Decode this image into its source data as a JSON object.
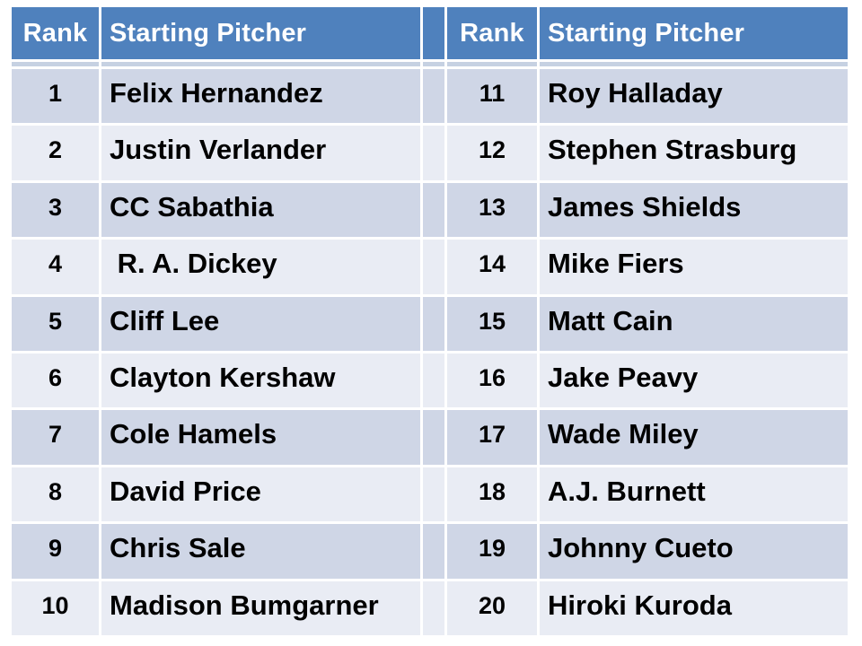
{
  "table": {
    "header": {
      "rank": "Rank",
      "pitcher": "Starting Pitcher"
    },
    "left_rows": [
      {
        "rank": "1",
        "name": "Felix Hernandez"
      },
      {
        "rank": "2",
        "name": "Justin Verlander"
      },
      {
        "rank": "3",
        "name": "CC Sabathia"
      },
      {
        "rank": "4",
        "name": " R. A. Dickey"
      },
      {
        "rank": "5",
        "name": "Cliff Lee"
      },
      {
        "rank": "6",
        "name": "Clayton Kershaw"
      },
      {
        "rank": "7",
        "name": "Cole Hamels"
      },
      {
        "rank": "8",
        "name": "David Price"
      },
      {
        "rank": "9",
        "name": "Chris Sale"
      },
      {
        "rank": "10",
        "name": "Madison Bumgarner"
      }
    ],
    "right_rows": [
      {
        "rank": "11",
        "name": "Roy Halladay"
      },
      {
        "rank": "12",
        "name": "Stephen Strasburg"
      },
      {
        "rank": "13",
        "name": "James Shields"
      },
      {
        "rank": "14",
        "name": "Mike Fiers"
      },
      {
        "rank": "15",
        "name": "Matt Cain"
      },
      {
        "rank": "16",
        "name": "Jake Peavy"
      },
      {
        "rank": "17",
        "name": "Wade Miley"
      },
      {
        "rank": "18",
        "name": "A.J. Burnett"
      },
      {
        "rank": "19",
        "name": "Johnny Cueto"
      },
      {
        "rank": "20",
        "name": "Hiroki Kuroda"
      }
    ]
  },
  "colors": {
    "header_bg": "#4F81BD",
    "header_text": "#FFFFFF",
    "band_dark": "#CFD6E6",
    "band_light": "#E9ECF4",
    "divider": "#C6D1E2",
    "gridline": "#FFFFFF",
    "body_text": "#000000",
    "page_bg": "#FFFFFF"
  }
}
